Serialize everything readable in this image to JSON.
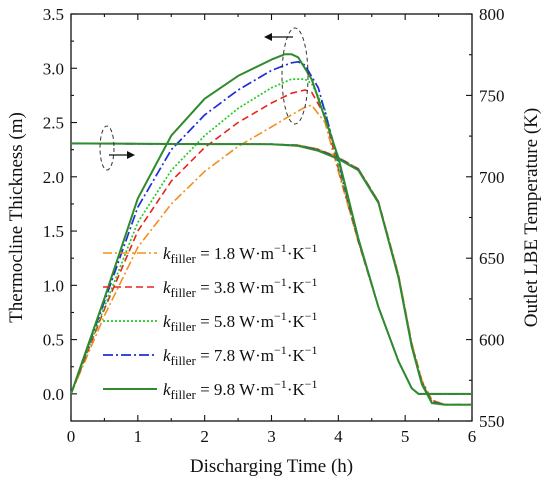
{
  "chart_data": {
    "type": "line",
    "xlabel": "Discharging Time (h)",
    "ylabel_left": "Thermocline Thickness (m)",
    "ylabel_right": "Outlet LBE Temperature (K)",
    "xlim": [
      0,
      6
    ],
    "ylim_left": [
      -0.25,
      3.5
    ],
    "ylim_right": [
      550,
      800
    ],
    "x_ticks": [
      "0",
      "1",
      "2",
      "3",
      "4",
      "5",
      "6"
    ],
    "y_left_ticks": [
      "0.0",
      "0.5",
      "1.0",
      "1.5",
      "2.0",
      "2.5",
      "3.0",
      "3.5"
    ],
    "y_right_ticks": [
      "550",
      "600",
      "650",
      "700",
      "750",
      "800"
    ],
    "grid": false,
    "legend_position": "bottom-left",
    "legend_entries": [
      {
        "k": "k",
        "sub": "filler",
        "text": " = 1.8 W·m",
        "sup1": "−1",
        "mid": "·K",
        "sup2": "−1"
      },
      {
        "k": "k",
        "sub": "filler",
        "text": " = 3.8 W·m",
        "sup1": "−1",
        "mid": "·K",
        "sup2": "−1"
      },
      {
        "k": "k",
        "sub": "filler",
        "text": " = 5.8 W·m",
        "sup1": "−1",
        "mid": "·K",
        "sup2": "−1"
      },
      {
        "k": "k",
        "sub": "filler",
        "text": " = 7.8 W·m",
        "sup1": "−1",
        "mid": "·K",
        "sup2": "−1"
      },
      {
        "k": "k",
        "sub": "filler",
        "text": " = 9.8 W·m",
        "sup1": "−1",
        "mid": "·K",
        "sup2": "−1"
      }
    ],
    "series": [
      {
        "color": "#f0901e",
        "dash": "9,3,2,3",
        "width": 1.6,
        "thickness": {
          "x": [
            0,
            0.5,
            1,
            1.5,
            2,
            2.5,
            3,
            3.3,
            3.5,
            3.6,
            3.8,
            4.0,
            4.3,
            4.6,
            4.9,
            5.1,
            5.2,
            5.3,
            5.4,
            5.6,
            6
          ],
          "y": [
            0,
            0.72,
            1.35,
            1.75,
            2.05,
            2.28,
            2.46,
            2.57,
            2.64,
            2.66,
            2.5,
            2.05,
            1.4,
            0.8,
            0.3,
            0.05,
            0.0,
            0,
            0,
            0,
            0
          ]
        },
        "temperature": {
          "x": [
            0,
            1,
            2,
            3,
            3.4,
            3.7,
            4.0,
            4.3,
            4.6,
            4.9,
            5.1,
            5.25,
            5.4,
            5.6,
            6
          ],
          "y": [
            720.5,
            720.3,
            720.1,
            720.0,
            719.5,
            717,
            712,
            705,
            685,
            640,
            598,
            575,
            563,
            560,
            560
          ]
        }
      },
      {
        "color": "#e8231d",
        "dash": "7,4",
        "width": 1.6,
        "thickness": {
          "x": [
            0,
            0.5,
            1,
            1.5,
            2,
            2.5,
            3,
            3.3,
            3.5,
            3.6,
            3.8,
            4.0,
            4.3,
            4.6,
            4.9,
            5.1,
            5.2,
            5.3,
            5.4,
            5.6,
            6
          ],
          "y": [
            0,
            0.78,
            1.5,
            1.96,
            2.27,
            2.5,
            2.68,
            2.77,
            2.8,
            2.78,
            2.56,
            2.08,
            1.4,
            0.8,
            0.3,
            0.05,
            0,
            0,
            0,
            0,
            0
          ]
        },
        "temperature": {
          "x": [
            0,
            1,
            2,
            3,
            3.4,
            3.7,
            4.0,
            4.3,
            4.6,
            4.9,
            5.1,
            5.25,
            5.4,
            5.6,
            6
          ],
          "y": [
            720.5,
            720.3,
            720.1,
            720.0,
            719.4,
            716.8,
            711.8,
            704.8,
            684.8,
            639.5,
            597,
            574,
            562.5,
            560,
            560
          ]
        }
      },
      {
        "color": "#22cc22",
        "dash": "2,2",
        "width": 1.7,
        "thickness": {
          "x": [
            0,
            0.5,
            1,
            1.5,
            2,
            2.5,
            3,
            3.3,
            3.5,
            3.6,
            3.8,
            4.0,
            4.3,
            4.6,
            4.9,
            5.1,
            5.2,
            5.3,
            5.4,
            5.6,
            6
          ],
          "y": [
            0,
            0.8,
            1.58,
            2.06,
            2.38,
            2.63,
            2.82,
            2.9,
            2.9,
            2.86,
            2.62,
            2.1,
            1.41,
            0.8,
            0.3,
            0.05,
            0,
            0,
            0,
            0,
            0
          ]
        },
        "temperature": {
          "x": [
            0,
            1,
            2,
            3,
            3.4,
            3.7,
            4.0,
            4.3,
            4.6,
            4.9,
            5.1,
            5.25,
            5.4,
            5.6,
            6
          ],
          "y": [
            720.5,
            720.3,
            720.1,
            720.0,
            719.3,
            716.6,
            711.6,
            704.6,
            684.6,
            639,
            596.5,
            573.5,
            562,
            560,
            560
          ]
        }
      },
      {
        "color": "#1f2fd8",
        "dash": "10,3,2,3",
        "width": 1.7,
        "thickness": {
          "x": [
            0,
            0.5,
            1,
            1.5,
            2,
            2.5,
            3,
            3.3,
            3.4,
            3.5,
            3.7,
            4.0,
            4.3,
            4.6,
            4.9,
            5.1,
            5.2,
            5.3,
            5.4,
            5.6,
            6
          ],
          "y": [
            0,
            0.85,
            1.72,
            2.25,
            2.57,
            2.8,
            2.98,
            3.05,
            3.06,
            3.03,
            2.82,
            2.15,
            1.42,
            0.8,
            0.3,
            0.05,
            0,
            0,
            0,
            0,
            0
          ]
        },
        "temperature": {
          "x": [
            0,
            1,
            2,
            3,
            3.4,
            3.7,
            4.0,
            4.3,
            4.6,
            4.9,
            5.1,
            5.25,
            5.4,
            5.6,
            6
          ],
          "y": [
            720.5,
            720.3,
            720.1,
            720.0,
            719.2,
            716.4,
            711.4,
            704.4,
            684.4,
            638.5,
            596,
            573,
            561.5,
            560,
            560
          ]
        }
      },
      {
        "color": "#2e8b2e",
        "dash": "",
        "width": 2.0,
        "thickness": {
          "x": [
            0,
            0.5,
            1,
            1.5,
            2,
            2.5,
            3,
            3.2,
            3.3,
            3.4,
            3.6,
            4.0,
            4.3,
            4.6,
            4.9,
            5.1,
            5.2,
            5.3,
            5.4,
            5.6,
            6
          ],
          "y": [
            0,
            0.88,
            1.8,
            2.38,
            2.72,
            2.93,
            3.08,
            3.13,
            3.13,
            3.1,
            2.9,
            2.18,
            1.43,
            0.8,
            0.3,
            0.05,
            0,
            0,
            0,
            0,
            0
          ]
        },
        "temperature": {
          "x": [
            0,
            1,
            2,
            3,
            3.4,
            3.7,
            4.0,
            4.3,
            4.6,
            4.9,
            5.1,
            5.25,
            5.4,
            5.6,
            6
          ],
          "y": [
            720.5,
            720.3,
            720.1,
            720.0,
            719.0,
            716.0,
            711.0,
            704.0,
            684.0,
            638,
            595.5,
            572.5,
            561,
            560,
            560
          ]
        }
      }
    ]
  }
}
